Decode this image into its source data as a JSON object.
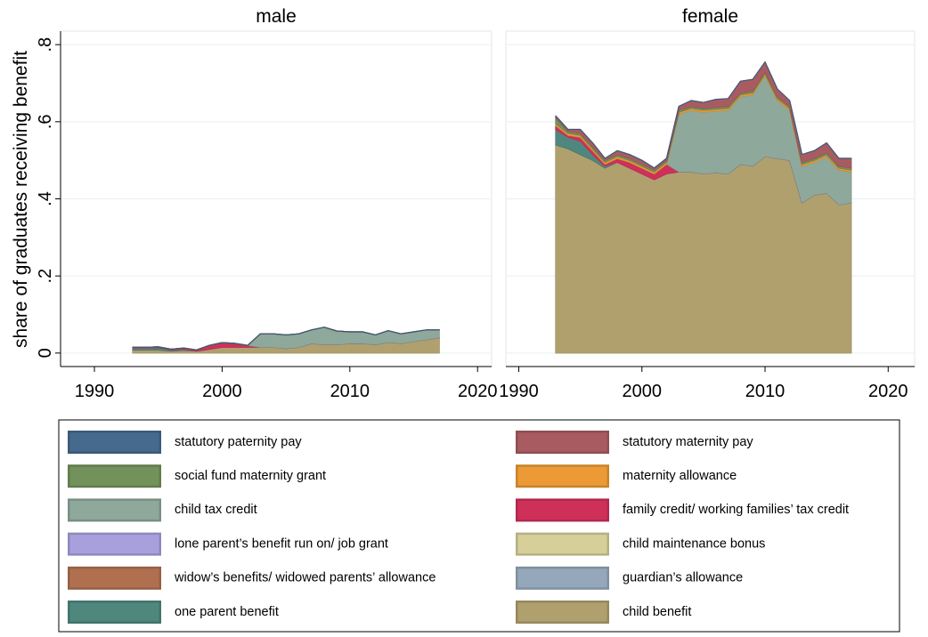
{
  "ylabel": "share of graduates receiving benefit",
  "chart_data": [
    {
      "type": "area",
      "title": "male",
      "x": [
        1993,
        1994,
        1995,
        1996,
        1997,
        1998,
        1999,
        2000,
        2001,
        2002,
        2003,
        2004,
        2005,
        2006,
        2007,
        2008,
        2009,
        2010,
        2011,
        2012,
        2013,
        2014,
        2015,
        2016,
        2017
      ],
      "xlim": [
        1987.35,
        2021.1
      ],
      "xticks": [
        1990,
        2000,
        2010,
        2020
      ],
      "ylim": [
        -0.035,
        0.835
      ],
      "yticks": [
        0,
        {
          "value": 0.2,
          "label": ".2"
        },
        {
          "value": 0.4,
          "label": ".4"
        },
        {
          "value": 0.6,
          "label": ".6"
        },
        {
          "value": 0.8,
          "label": ".8"
        }
      ],
      "grid": true,
      "series": [
        {
          "name": "child benefit",
          "color": "#b0a06e",
          "values": [
            0.008,
            0.008,
            0.008,
            0.005,
            0.007,
            0.005,
            0.01,
            0.015,
            0.015,
            0.015,
            0.015,
            0.015,
            0.012,
            0.015,
            0.025,
            0.022,
            0.022,
            0.025,
            0.025,
            0.022,
            0.028,
            0.025,
            0.03,
            0.035,
            0.04
          ]
        },
        {
          "name": "one parent benefit",
          "color": "#4f877e",
          "values": [
            0.005,
            0.005,
            0.006,
            0.003,
            0.003,
            0,
            0,
            0,
            0,
            0,
            0,
            0,
            0,
            0,
            0,
            0,
            0,
            0,
            0,
            0,
            0,
            0,
            0,
            0,
            0
          ]
        },
        {
          "name": "guardian’s allowance",
          "color": "#95a8bb",
          "values": [
            0,
            0,
            0,
            0,
            0,
            0,
            0,
            0,
            0,
            0,
            0,
            0,
            0,
            0,
            0,
            0,
            0,
            0,
            0,
            0,
            0,
            0,
            0,
            0,
            0
          ]
        },
        {
          "name": "widow’s benefits/ widowed parents’ allowance",
          "color": "#b07050",
          "values": [
            0,
            0,
            0,
            0,
            0,
            0,
            0,
            0,
            0,
            0,
            0,
            0,
            0,
            0,
            0,
            0,
            0,
            0,
            0,
            0,
            0,
            0,
            0,
            0,
            0
          ]
        },
        {
          "name": "child maintenance bonus",
          "color": "#d6cf9a",
          "values": [
            0,
            0,
            0,
            0,
            0,
            0,
            0,
            0,
            0,
            0,
            0,
            0,
            0,
            0,
            0,
            0,
            0,
            0,
            0,
            0,
            0,
            0,
            0,
            0,
            0
          ]
        },
        {
          "name": "lone parent’s benefit run on/ job grant",
          "color": "#a8a0dd",
          "values": [
            0,
            0,
            0,
            0,
            0,
            0,
            0,
            0,
            0,
            0,
            0,
            0,
            0,
            0,
            0,
            0,
            0,
            0,
            0,
            0,
            0,
            0,
            0,
            0,
            0
          ]
        },
        {
          "name": "family credit/ working families’ tax credit",
          "color": "#cf3059",
          "values": [
            0.002,
            0.002,
            0.002,
            0.002,
            0.003,
            0.003,
            0.01,
            0.012,
            0.01,
            0.005,
            0,
            0,
            0,
            0,
            0,
            0,
            0,
            0,
            0,
            0,
            0,
            0,
            0,
            0,
            0
          ]
        },
        {
          "name": "child tax credit",
          "color": "#8ea89c",
          "values": [
            0,
            0,
            0,
            0,
            0,
            0,
            0,
            0,
            0,
            0,
            0.035,
            0.035,
            0.035,
            0.035,
            0.035,
            0.045,
            0.035,
            0.03,
            0.03,
            0.025,
            0.03,
            0.025,
            0.025,
            0.025,
            0.02
          ]
        },
        {
          "name": "maternity allowance",
          "color": "#ec9a35",
          "values": [
            0,
            0,
            0,
            0,
            0,
            0,
            0,
            0,
            0,
            0,
            0,
            0,
            0,
            0,
            0,
            0,
            0,
            0,
            0,
            0,
            0,
            0,
            0,
            0,
            0
          ]
        },
        {
          "name": "social fund maternity grant",
          "color": "#73915a",
          "values": [
            0,
            0,
            0,
            0,
            0,
            0,
            0,
            0,
            0,
            0,
            0,
            0,
            0,
            0,
            0,
            0,
            0,
            0,
            0,
            0,
            0,
            0,
            0,
            0,
            0
          ]
        },
        {
          "name": "statutory maternity pay",
          "color": "#a85c62",
          "values": [
            0,
            0,
            0,
            0,
            0,
            0,
            0,
            0,
            0,
            0,
            0,
            0,
            0,
            0,
            0,
            0,
            0,
            0,
            0,
            0,
            0,
            0,
            0,
            0,
            0
          ]
        },
        {
          "name": "statutory paternity pay",
          "color": "#466a8e",
          "values": [
            0,
            0,
            0,
            0,
            0,
            0,
            0,
            0,
            0,
            0,
            0,
            0,
            0,
            0,
            0,
            0,
            0,
            0,
            0,
            0,
            0,
            0,
            0,
            0,
            0
          ]
        }
      ]
    },
    {
      "type": "area",
      "title": "female",
      "x": [
        1993,
        1994,
        1995,
        1996,
        1997,
        1998,
        1999,
        2000,
        2001,
        2002,
        2003,
        2004,
        2005,
        2006,
        2007,
        2008,
        2009,
        2010,
        2011,
        2012,
        2013,
        2014,
        2015,
        2016,
        2017
      ],
      "xlim": [
        1988.95,
        2022.15
      ],
      "xticks": [
        1990,
        2000,
        2010,
        2020
      ],
      "ylim": [
        -0.035,
        0.835
      ],
      "yticks": [
        0,
        {
          "value": 0.2,
          "label": ".2"
        },
        {
          "value": 0.4,
          "label": ".4"
        },
        {
          "value": 0.6,
          "label": ".6"
        },
        {
          "value": 0.8,
          "label": ".8"
        }
      ],
      "grid": true,
      "series": [
        {
          "name": "child benefit",
          "color": "#b0a06e",
          "values": [
            0.54,
            0.53,
            0.515,
            0.5,
            0.48,
            0.495,
            0.48,
            0.465,
            0.45,
            0.465,
            0.47,
            0.47,
            0.465,
            0.468,
            0.465,
            0.49,
            0.485,
            0.51,
            0.505,
            0.5,
            0.39,
            0.41,
            0.415,
            0.385,
            0.39
          ]
        },
        {
          "name": "one parent benefit",
          "color": "#4f877e",
          "values": [
            0.04,
            0.03,
            0.035,
            0.015,
            0.005,
            0,
            0,
            0,
            0,
            0,
            0,
            0,
            0,
            0,
            0,
            0,
            0,
            0,
            0,
            0,
            0,
            0,
            0,
            0,
            0
          ]
        },
        {
          "name": "guardian’s allowance",
          "color": "#95a8bb",
          "values": [
            0,
            0,
            0,
            0,
            0,
            0,
            0,
            0,
            0,
            0,
            0,
            0,
            0,
            0,
            0,
            0,
            0,
            0,
            0,
            0,
            0,
            0,
            0,
            0,
            0
          ]
        },
        {
          "name": "widow’s benefits/ widowed parents’ allowance",
          "color": "#b07050",
          "values": [
            0,
            0,
            0,
            0,
            0,
            0,
            0,
            0,
            0,
            0,
            0,
            0,
            0,
            0,
            0,
            0,
            0,
            0,
            0,
            0,
            0,
            0,
            0,
            0,
            0
          ]
        },
        {
          "name": "child maintenance bonus",
          "color": "#d6cf9a",
          "values": [
            0,
            0,
            0,
            0,
            0,
            0,
            0,
            0,
            0,
            0,
            0,
            0,
            0,
            0,
            0,
            0,
            0,
            0,
            0,
            0,
            0,
            0,
            0,
            0,
            0
          ]
        },
        {
          "name": "lone parent’s benefit run on/ job grant",
          "color": "#a8a0dd",
          "values": [
            0,
            0,
            0,
            0,
            0,
            0,
            0,
            0,
            0,
            0,
            0,
            0,
            0,
            0,
            0,
            0,
            0,
            0,
            0,
            0,
            0,
            0,
            0,
            0,
            0
          ]
        },
        {
          "name": "family credit/ working families’ tax credit",
          "color": "#cf3059",
          "values": [
            0.01,
            0.005,
            0.01,
            0.01,
            0.005,
            0.01,
            0.015,
            0.015,
            0.015,
            0.025,
            0,
            0,
            0,
            0,
            0,
            0,
            0,
            0,
            0,
            0,
            0,
            0,
            0,
            0,
            0
          ]
        },
        {
          "name": "child tax credit",
          "color": "#8ea89c",
          "values": [
            0,
            0,
            0,
            0,
            0,
            0,
            0,
            0,
            0,
            0,
            0.15,
            0.16,
            0.16,
            0.16,
            0.165,
            0.175,
            0.185,
            0.21,
            0.15,
            0.13,
            0.095,
            0.085,
            0.095,
            0.09,
            0.08
          ]
        },
        {
          "name": "maternity allowance",
          "color": "#ec9a35",
          "values": [
            0.005,
            0.005,
            0.005,
            0.005,
            0.005,
            0.005,
            0.005,
            0.005,
            0.005,
            0.005,
            0.005,
            0.005,
            0.005,
            0.005,
            0.005,
            0.005,
            0.005,
            0.005,
            0.005,
            0.005,
            0.005,
            0.005,
            0.005,
            0.005,
            0.005
          ]
        },
        {
          "name": "social fund maternity grant",
          "color": "#73915a",
          "values": [
            0.015,
            0.005,
            0.005,
            0.005,
            0.005,
            0.005,
            0.005,
            0.005,
            0.005,
            0.005,
            0.005,
            0.005,
            0.005,
            0.005,
            0.005,
            0.005,
            0.005,
            0.005,
            0.005,
            0.005,
            0.005,
            0.005,
            0.005,
            0.005,
            0.005
          ]
        },
        {
          "name": "statutory maternity pay",
          "color": "#a85c62",
          "values": [
            0.005,
            0.005,
            0.01,
            0.01,
            0.005,
            0.01,
            0.01,
            0.01,
            0.005,
            0.005,
            0.01,
            0.015,
            0.015,
            0.02,
            0.02,
            0.03,
            0.03,
            0.025,
            0.02,
            0.015,
            0.02,
            0.02,
            0.025,
            0.02,
            0.025
          ]
        },
        {
          "name": "statutory paternity pay",
          "color": "#466a8e",
          "values": [
            0,
            0,
            0,
            0,
            0,
            0,
            0,
            0,
            0,
            0,
            0,
            0,
            0,
            0,
            0,
            0,
            0,
            0,
            0,
            0,
            0,
            0,
            0,
            0,
            0
          ]
        }
      ]
    }
  ]
}
